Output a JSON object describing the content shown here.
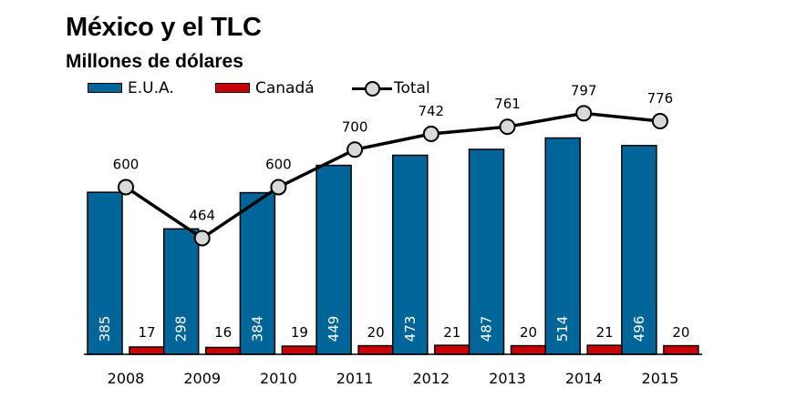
{
  "title": "México y el TLC",
  "subtitle": "Millones de dólares",
  "colors": {
    "eua": "#006699",
    "canada": "#cc0000",
    "total_marker": "#d9d9d9"
  },
  "legend": {
    "eua": "E.U.A.",
    "canada": "Canadá",
    "total": "Total"
  },
  "chart_data": {
    "type": "bar",
    "categories": [
      "2008",
      "2009",
      "2010",
      "2011",
      "2012",
      "2013",
      "2014",
      "2015"
    ],
    "series": [
      {
        "name": "E.U.A.",
        "type": "bar",
        "values": [
          385,
          298,
          384,
          449,
          473,
          487,
          514,
          496
        ]
      },
      {
        "name": "Canadá",
        "type": "bar",
        "values": [
          17,
          16,
          19,
          20,
          21,
          20,
          21,
          20
        ]
      },
      {
        "name": "Total",
        "type": "line",
        "values": [
          600,
          464,
          600,
          700,
          742,
          761,
          797,
          776
        ]
      }
    ],
    "grid": false,
    "legend_position": "top-left"
  }
}
